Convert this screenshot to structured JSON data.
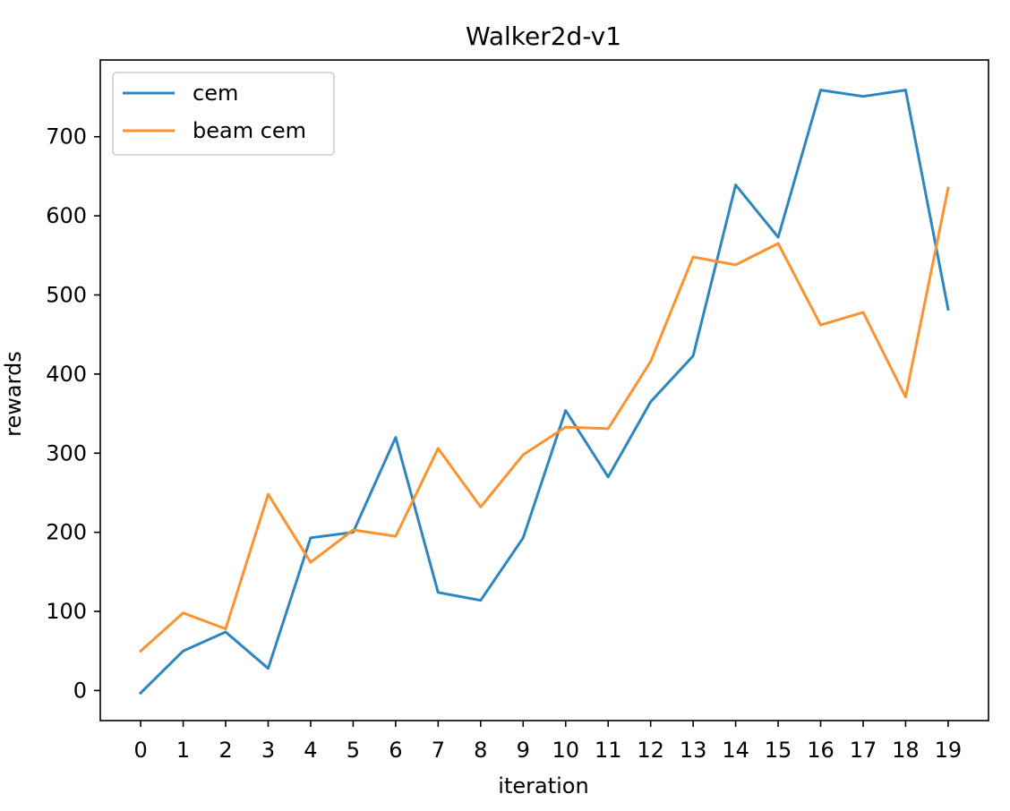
{
  "chart_data": {
    "type": "line",
    "title": "Walker2d-v1",
    "xlabel": "iteration",
    "ylabel": "rewards",
    "x": [
      0,
      1,
      2,
      3,
      4,
      5,
      6,
      7,
      8,
      9,
      10,
      11,
      12,
      13,
      14,
      15,
      16,
      17,
      18,
      19
    ],
    "xticks": [
      "0",
      "1",
      "2",
      "3",
      "4",
      "5",
      "6",
      "7",
      "8",
      "9",
      "10",
      "11",
      "12",
      "13",
      "14",
      "15",
      "16",
      "17",
      "18",
      "19"
    ],
    "yticks": [
      0,
      100,
      200,
      300,
      400,
      500,
      600,
      700
    ],
    "xlim": [
      -0.95,
      19.95
    ],
    "ylim": [
      -38,
      797
    ],
    "grid": false,
    "legend_position": "upper left",
    "series": [
      {
        "name": "cem",
        "color": "#2e86c1",
        "values": [
          -3,
          50,
          74,
          28,
          193,
          200,
          320,
          124,
          114,
          193,
          354,
          270,
          365,
          423,
          639,
          573,
          759,
          751,
          759,
          482
        ]
      },
      {
        "name": "beam cem",
        "color": "#ff922e",
        "values": [
          50,
          98,
          78,
          248,
          162,
          203,
          195,
          306,
          232,
          298,
          333,
          331,
          416,
          548,
          538,
          565,
          462,
          478,
          371,
          635
        ]
      }
    ]
  }
}
